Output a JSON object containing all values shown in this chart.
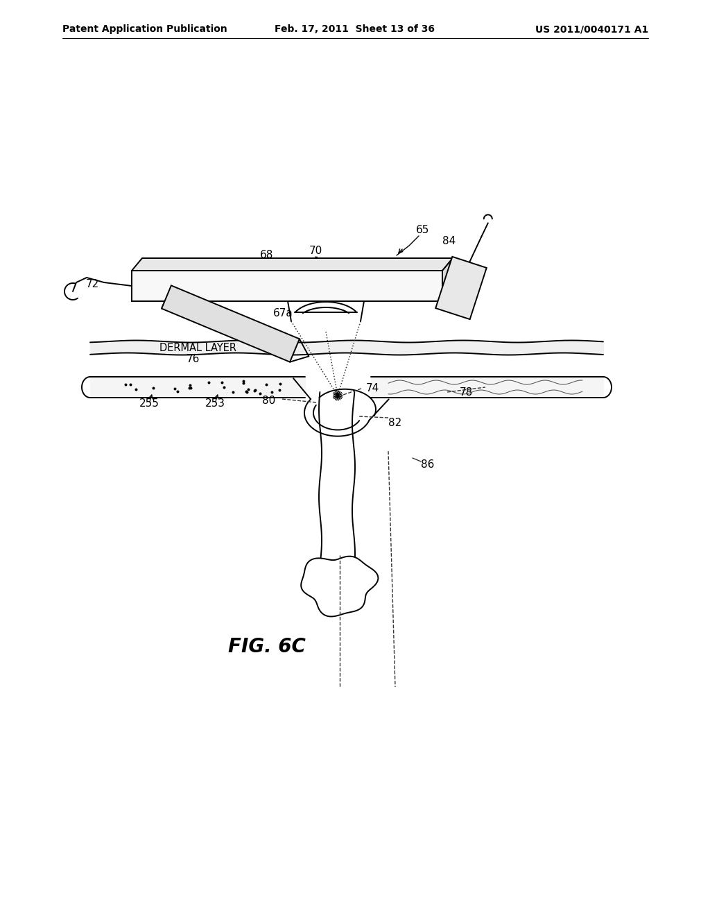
{
  "bg": "#ffffff",
  "lc": "#000000",
  "header_left": "Patent Application Publication",
  "header_center": "Feb. 17, 2011  Sheet 13 of 36",
  "header_right": "US 2011/0040171 A1",
  "fig_label": "FIG. 6C",
  "figsize": [
    10.24,
    13.2
  ],
  "dpi": 100
}
